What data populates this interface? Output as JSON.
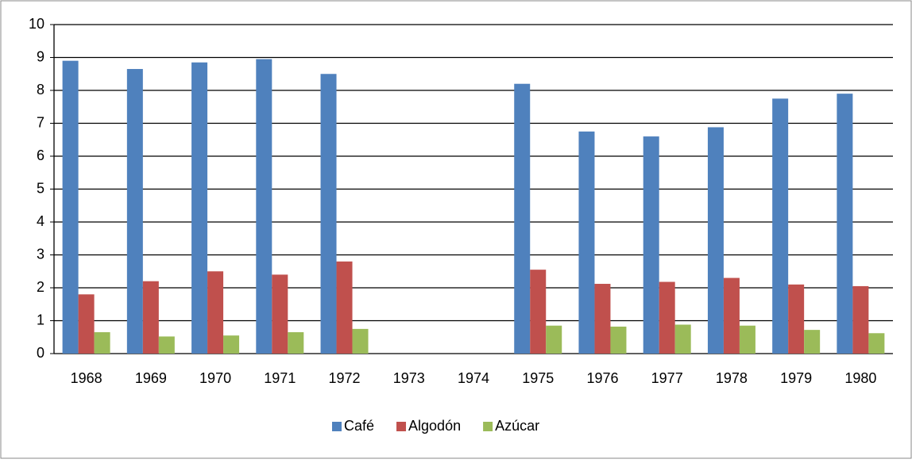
{
  "chart_data": {
    "type": "bar",
    "categories": [
      "1968",
      "1969",
      "1970",
      "1971",
      "1972",
      "1973",
      "1974",
      "1975",
      "1976",
      "1977",
      "1978",
      "1979",
      "1980"
    ],
    "series": [
      {
        "name": "Café",
        "color": "#4f81bd",
        "values": [
          8.9,
          8.65,
          8.85,
          8.95,
          8.5,
          null,
          null,
          8.2,
          6.75,
          6.6,
          6.88,
          7.75,
          7.9
        ]
      },
      {
        "name": "Algodón",
        "color": "#c0504d",
        "values": [
          1.8,
          2.2,
          2.5,
          2.4,
          2.8,
          null,
          null,
          2.55,
          2.12,
          2.18,
          2.3,
          2.1,
          2.05
        ]
      },
      {
        "name": "Azúcar",
        "color": "#9bbb59",
        "values": [
          0.65,
          0.52,
          0.55,
          0.65,
          0.75,
          null,
          null,
          0.85,
          0.82,
          0.88,
          0.85,
          0.72,
          0.62
        ]
      }
    ],
    "ylim": [
      0,
      10
    ],
    "yticks": [
      0,
      1,
      2,
      3,
      4,
      5,
      6,
      7,
      8,
      9,
      10
    ],
    "grid": true,
    "legend": "bottom"
  }
}
